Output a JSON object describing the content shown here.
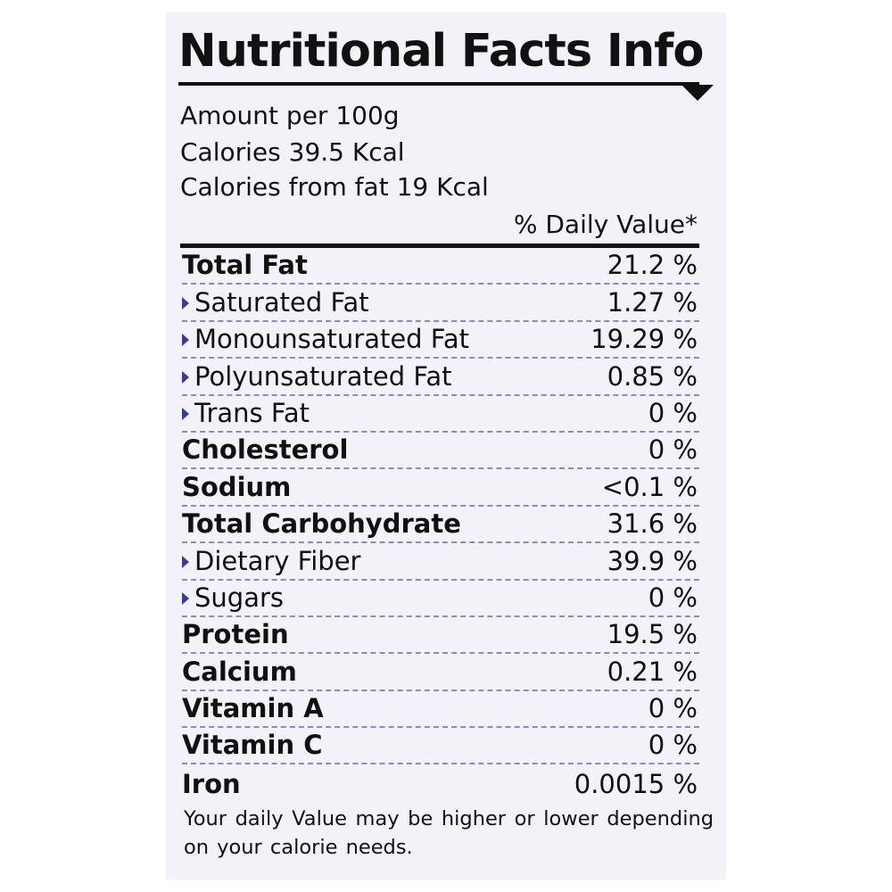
{
  "label": {
    "title": "Nutritional Facts Info",
    "amount": "Amount per 100g",
    "calories": "Calories 39.5 Kcal",
    "calories_from_fat": "Calories from fat 19 Kcal",
    "daily_value_header": "% Daily Value*",
    "nutrients": [
      {
        "name": "Total Fat",
        "value": "21.2 %",
        "level": "main"
      },
      {
        "name": "Saturated Fat",
        "value": "1.27 %",
        "level": "sub"
      },
      {
        "name": "Monounsaturated Fat",
        "value": "19.29 %",
        "level": "sub"
      },
      {
        "name": "Polyunsaturated Fat",
        "value": "0.85 %",
        "level": "sub"
      },
      {
        "name": "Trans Fat",
        "value": "0 %",
        "level": "sub"
      },
      {
        "name": "Cholesterol",
        "value": "0 %",
        "level": "main"
      },
      {
        "name": "Sodium",
        "value": "<0.1 %",
        "level": "main"
      },
      {
        "name": "Total Carbohydrate",
        "value": "31.6 %",
        "level": "main"
      },
      {
        "name": "Dietary Fiber",
        "value": "39.9 %",
        "level": "sub"
      },
      {
        "name": "Sugars",
        "value": "0 %",
        "level": "sub"
      },
      {
        "name": "Protein",
        "value": "19.5 %",
        "level": "main"
      },
      {
        "name": "Calcium",
        "value": "0.21 %",
        "level": "main"
      },
      {
        "name": "Vitamin A",
        "value": "0 %",
        "level": "main"
      },
      {
        "name": "Vitamin C",
        "value": "0 %",
        "level": "main"
      },
      {
        "name": "Iron",
        "value": "0.0015 %",
        "level": "main"
      }
    ],
    "footnote": "Your daily Value may be higher or lower depending on your calorie needs."
  },
  "colors": {
    "panel_background": "#f2f2f8",
    "text": "#111111",
    "bullet": "#3c3c8c",
    "divider": "#8b8bc0"
  }
}
